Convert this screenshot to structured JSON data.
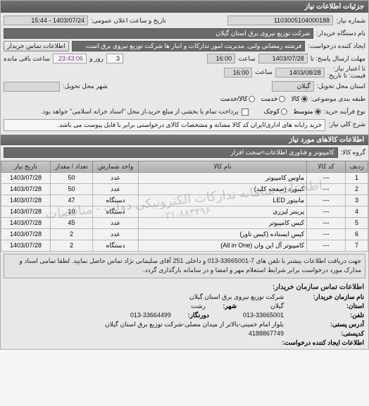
{
  "colors": {
    "header_bg_top": "#707070",
    "header_bg_bottom": "#585858",
    "panel_bg": "#e8e8e8",
    "box_bg": "#d8d8d8",
    "box_dark_bg": "#6a6a6a",
    "box_light_bg": "#f6f6f6",
    "border": "#a0a0a0",
    "th_bg_top": "#c8c8c8",
    "th_bg_bottom": "#b0b0b0",
    "td_bg": "#f2f2f2",
    "watermark": "rgba(120,120,120,0.35)"
  },
  "header": {
    "title": "جزئیات اطلاعات نیاز"
  },
  "form": {
    "need_no_label": "شماره نیاز:",
    "need_no": "1103005104000188",
    "announce_label": "تاریخ و ساعت اعلان عمومی:",
    "announce_value": "1403/07/24 - 15:44",
    "buyer_org_label": "نام دستگاه خریدار:",
    "buyer_org": "شرکت توزیع نیروی برق استان گیلان",
    "requester_label": "ایجاد کننده درخواست:",
    "requester": "فرشته رمضانی ولنی, مدیریت امور تدارکات و انبار ها شرکت توزیع نیروی برق است",
    "buyer_contact_btn": "اطلاعات تماس خریدار",
    "reply_deadline_label": "مهلت ارسال پاسخ: تا",
    "reply_deadline_date": "1403/07/28",
    "time_label": "ساعت",
    "reply_deadline_time": "16:00",
    "days_remaining_prefix": "",
    "days_remaining": "3",
    "days_label": "روز و",
    "time_remaining": "23:43:06",
    "time_remaining_suffix": "ساعت باقی مانده",
    "validity_label": "تا اعتبار نیاز:\nقیمت: تا تاریخ:",
    "validity_date": "1403/08/28",
    "validity_time": "16:00",
    "delivery_province_label": "استان محل تحویل:",
    "delivery_province": "گیلان",
    "delivery_city_label": "شهر محل تحویل:",
    "delivery_city": "",
    "category_label": "طبقه بندی موضوعی:",
    "category_options": {
      "goods": "کالا",
      "service": "خدمت",
      "goods_service": "کالا/خدمت"
    },
    "category_selected": "goods",
    "process_label": "نوع فرآیند خرید:",
    "process_options": {
      "medium": "متوسط",
      "small": "کوچک"
    },
    "process_selected": "medium",
    "partial_pay_chk_label": "پرداخت تمام یا بخشی از مبلغ خرید،از محل \"اسناد خزانه اسلامی\" خواهد بود.",
    "partial_pay_checked": false,
    "need_desc_label": "شرح کلی نیاز:",
    "need_desc": "خرید رایانه های اداری/ایران کد کالا مشابه و مشخصات کالای درخواستی برابر با فایل پیوست می باشد."
  },
  "goods_section": {
    "title": "اطلاعات کالاهای مورد نیاز",
    "group_label": "گروه کالا:",
    "group_value": "کامپیوتر و فناوری اطلاعات>سخت افزار",
    "columns": {
      "row": "ردیف",
      "code": "کد کالا",
      "name": "نام کالا",
      "unit": "واحد شمارش",
      "qty": "تعداد / مقدار",
      "date": "تاریخ نیاز"
    },
    "rows": [
      {
        "row": "1",
        "code": "---",
        "name": "ماوس کامپیوتر",
        "unit": "عدد",
        "qty": "50",
        "date": "1403/07/28"
      },
      {
        "row": "2",
        "code": "---",
        "name": "کیبورد (صفحه کلید)",
        "unit": "عدد",
        "qty": "50",
        "date": "1403/07/28"
      },
      {
        "row": "3",
        "code": "---",
        "name": "مانیتور LED",
        "unit": "دستگاه",
        "qty": "47",
        "date": "1403/07/28"
      },
      {
        "row": "4",
        "code": "---",
        "name": "پرینتر لیزری",
        "unit": "دستگاه",
        "qty": "10",
        "date": "1403/07/28"
      },
      {
        "row": "5",
        "code": "---",
        "name": "کیس کامپیوتر",
        "unit": "عدد",
        "qty": "45",
        "date": "1403/07/28"
      },
      {
        "row": "6",
        "code": "---",
        "name": "کیس ایستاده (کیس تاور)",
        "unit": "عدد",
        "qty": "2",
        "date": "1403/07/28"
      },
      {
        "row": "7",
        "code": "---",
        "name": "کامپیوتر آل این وان (All in One)",
        "unit": "دستگاه",
        "qty": "2",
        "date": "1403/07/28"
      }
    ],
    "watermark_text": "اطلاعات سامانه تدارکات الکترونیکی دولت - مناقصات",
    "watermark_number": "۰۲۱-۸۸۳۴۹۶"
  },
  "note": "جهت دریافت اطلاعات بیشتر با تلفن های 7-33665001-013 و داخلی 251 آقای سلیمانی نژاد تماس حاصل نمایید. لطفا تمامی اسناد و مدارک مورد درخواست برابر شرایط استعلام مهر و امضا و در سامانه بارگذاری گردد.",
  "contact": {
    "title": "اطلاعات تماس سازمان خریدار:",
    "org_label": "نام سازمان خریدار:",
    "org_value": "شرکت توزیع نیروی برق استان گیلان",
    "city_label": "شهر:",
    "city_value": "رشت",
    "province_label": "استان:",
    "province_value": "گیلان",
    "fax_label": "دورنگار:",
    "fax_value": "013-33664499",
    "phone_label": "تلفن:",
    "phone_value": "013-33665001",
    "address_label": "آدرس پستی:",
    "address_value": "بلوار امام خمینی-بالاتر از میدان مصلی-شرکت توزیع برق استان گیلان",
    "postcode_label": "کدپستی:",
    "postcode_value": "4188867749",
    "creator_contact_label": "اطلاعات ایجاد کننده درخواست:"
  }
}
